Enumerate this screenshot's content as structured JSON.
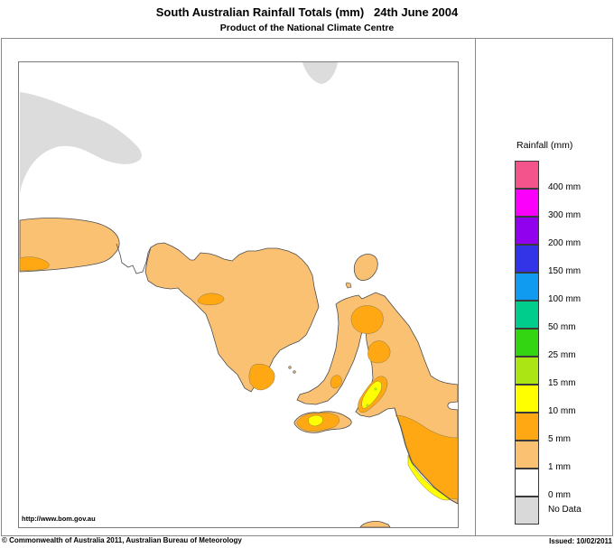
{
  "header": {
    "title": "South Australian Rainfall Totals (mm)   24th June 2004",
    "subtitle": "Product of the National Climate Centre"
  },
  "map": {
    "url_label": "http://www.bom.gov.au",
    "colors": {
      "land": "#FFFFFF",
      "sea": "#FFFFFF",
      "coast_line": "#4d4d4d",
      "contour_line": "#8a7a40",
      "no_data": "#DCDCDC",
      "rain_1": "#FAC173",
      "rain_5": "#FFA813",
      "rain_10": "#FFFF00",
      "rain_15": "#ABE614"
    }
  },
  "legend": {
    "title": "Rainfall (mm)",
    "entries": [
      {
        "label": "400 mm",
        "color": "#F4548C"
      },
      {
        "label": "300 mm",
        "color": "#FB00FB"
      },
      {
        "label": "200 mm",
        "color": "#9201EE"
      },
      {
        "label": "150 mm",
        "color": "#3333E8"
      },
      {
        "label": "100 mm",
        "color": "#119BF0"
      },
      {
        "label": "50 mm",
        "color": "#00CC8C"
      },
      {
        "label": "25 mm",
        "color": "#33D411"
      },
      {
        "label": "15 mm",
        "color": "#ABE614"
      },
      {
        "label": "10 mm",
        "color": "#FFFF00"
      },
      {
        "label": "5 mm",
        "color": "#FFA813"
      },
      {
        "label": "1 mm",
        "color": "#FAC173"
      },
      {
        "label": "0 mm",
        "color": "#FFFFFF"
      },
      {
        "label": "No Data",
        "color": "#D9D9D9"
      }
    ]
  },
  "footer": {
    "copyright": "© Commonwealth of Australia 2011, Australian Bureau of Meteorology",
    "issued": "Issued: 10/02/2011"
  }
}
